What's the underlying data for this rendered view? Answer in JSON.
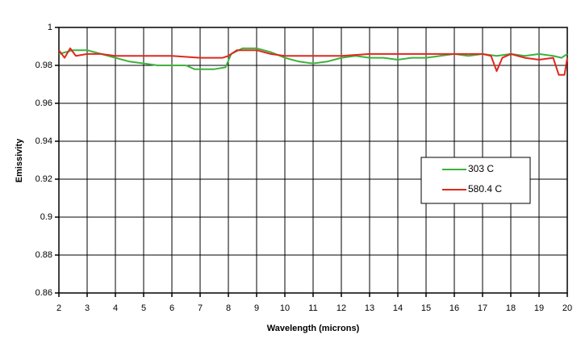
{
  "chart_data": {
    "type": "line",
    "x_label": "Wavelength (microns)",
    "y_label": "Emissivity",
    "xlim": [
      2,
      20
    ],
    "xticks": [
      2,
      3,
      4,
      5,
      6,
      7,
      8,
      9,
      10,
      11,
      12,
      13,
      14,
      15,
      16,
      17,
      18,
      19,
      20
    ],
    "ylim": [
      0.86,
      1
    ],
    "yticks": [
      0.86,
      0.88,
      0.9,
      0.92,
      0.94,
      0.96,
      0.98,
      1
    ],
    "grid": true,
    "legend": "right",
    "series": [
      {
        "name": "303 C",
        "color": "#3cb23c",
        "x": [
          2,
          2.5,
          3,
          3.5,
          4,
          4.5,
          5,
          5.5,
          6,
          6.5,
          6.8,
          7.5,
          7.9,
          8.1,
          8.5,
          9,
          9.5,
          10,
          10.5,
          11,
          11.5,
          12,
          12.5,
          13,
          13.5,
          14,
          14.5,
          15,
          15.5,
          16,
          16.5,
          17,
          17.5,
          18,
          18.5,
          19,
          19.5,
          19.8,
          20
        ],
        "values": [
          0.986,
          0.988,
          0.988,
          0.986,
          0.984,
          0.982,
          0.981,
          0.98,
          0.98,
          0.98,
          0.978,
          0.978,
          0.979,
          0.986,
          0.989,
          0.989,
          0.987,
          0.984,
          0.982,
          0.981,
          0.982,
          0.984,
          0.985,
          0.984,
          0.984,
          0.983,
          0.984,
          0.984,
          0.985,
          0.986,
          0.985,
          0.986,
          0.985,
          0.986,
          0.985,
          0.986,
          0.985,
          0.984,
          0.986
        ]
      },
      {
        "name": "580.4 C",
        "color": "#e0281e",
        "x": [
          2,
          2.2,
          2.4,
          2.6,
          3,
          3.5,
          4,
          5,
          6,
          7,
          7.8,
          8,
          8.3,
          9,
          9.5,
          10,
          11,
          12,
          13,
          14,
          15,
          16,
          17,
          17.3,
          17.5,
          17.7,
          18,
          18.5,
          19,
          19.5,
          19.7,
          19.9,
          20
        ],
        "values": [
          0.988,
          0.984,
          0.989,
          0.985,
          0.986,
          0.986,
          0.985,
          0.985,
          0.985,
          0.984,
          0.984,
          0.985,
          0.988,
          0.988,
          0.986,
          0.985,
          0.985,
          0.985,
          0.986,
          0.986,
          0.986,
          0.986,
          0.986,
          0.985,
          0.977,
          0.984,
          0.986,
          0.984,
          0.983,
          0.984,
          0.975,
          0.975,
          0.984
        ]
      }
    ]
  }
}
